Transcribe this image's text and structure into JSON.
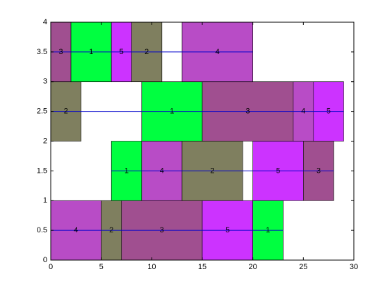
{
  "chart_data": {
    "type": "gantt",
    "xlim": [
      0,
      30
    ],
    "ylim": [
      0,
      4
    ],
    "xticks": [
      0,
      5,
      10,
      15,
      20,
      25,
      30
    ],
    "yticks": [
      0,
      0.5,
      1,
      1.5,
      2,
      2.5,
      3,
      3.5,
      4
    ],
    "job_colors": [
      "#00ff40",
      "#7f7f5f",
      "#a04f90",
      "#b84cc6",
      "#cc33ff"
    ],
    "line_color": "#0000cc",
    "rows": [
      {
        "y0": 0,
        "y1": 1,
        "tasks": [
          {
            "label": "4",
            "start": 0,
            "end": 5
          },
          {
            "label": "2",
            "start": 5,
            "end": 7
          },
          {
            "label": "3",
            "start": 7,
            "end": 15
          },
          {
            "label": "5",
            "start": 15,
            "end": 20
          },
          {
            "label": "1",
            "start": 20,
            "end": 23
          }
        ]
      },
      {
        "y0": 1,
        "y1": 2,
        "tasks": [
          {
            "label": "1",
            "start": 6,
            "end": 9
          },
          {
            "label": "4",
            "start": 9,
            "end": 13
          },
          {
            "label": "2",
            "start": 13,
            "end": 19
          },
          {
            "label": "5",
            "start": 20,
            "end": 25
          },
          {
            "label": "3",
            "start": 25,
            "end": 28
          }
        ]
      },
      {
        "y0": 2,
        "y1": 3,
        "tasks": [
          {
            "label": "2",
            "start": 0,
            "end": 3
          },
          {
            "label": "1",
            "start": 9,
            "end": 15
          },
          {
            "label": "3",
            "start": 15,
            "end": 24
          },
          {
            "label": "4",
            "start": 24,
            "end": 26
          },
          {
            "label": "5",
            "start": 26,
            "end": 29
          }
        ]
      },
      {
        "y0": 3,
        "y1": 4,
        "tasks": [
          {
            "label": "3",
            "start": 0,
            "end": 2
          },
          {
            "label": "1",
            "start": 2,
            "end": 6
          },
          {
            "label": "5",
            "start": 6,
            "end": 8
          },
          {
            "label": "2",
            "start": 8,
            "end": 11
          },
          {
            "label": "4",
            "start": 13,
            "end": 20
          }
        ]
      }
    ]
  }
}
